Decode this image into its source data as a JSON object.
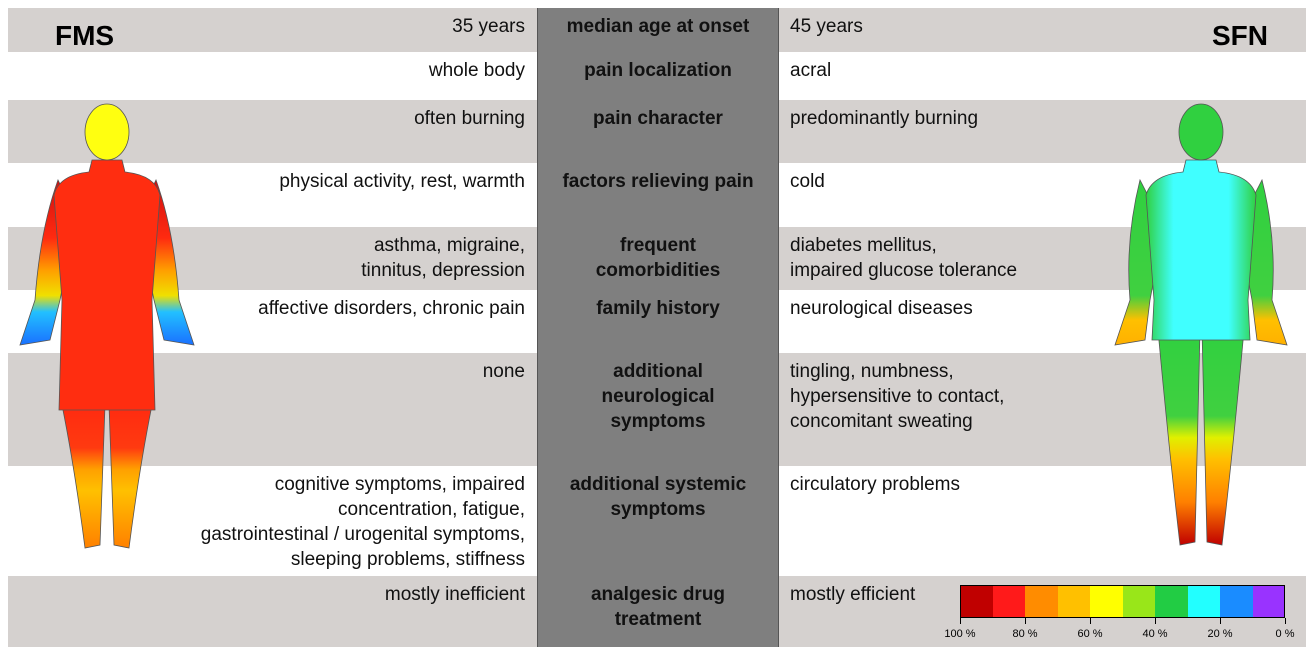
{
  "left_label": "FMS",
  "right_label": "SFN",
  "rows": [
    {
      "feature": "median age at onset",
      "fms": "35 years",
      "sfn": "45 years"
    },
    {
      "feature": "pain localization",
      "fms": "whole body",
      "sfn": "acral"
    },
    {
      "feature": "pain character",
      "fms": "often burning",
      "sfn": "predominantly burning"
    },
    {
      "feature": "factors relieving pain",
      "fms": "physical activity, rest, warmth",
      "sfn": "cold"
    },
    {
      "feature": "frequent\ncomorbidities",
      "fms": "asthma, migraine,\ntinnitus, depression",
      "sfn": "diabetes mellitus,\nimpaired glucose tolerance"
    },
    {
      "feature": "family history",
      "fms": "affective disorders, chronic pain",
      "sfn": "neurological diseases"
    },
    {
      "feature": "additional\nneurological\nsymptoms",
      "fms": "none",
      "sfn": "tingling, numbness,\nhypersensitive to contact,\nconcomitant sweating"
    },
    {
      "feature": "additional systemic\nsymptoms",
      "fms": "cognitive symptoms, impaired\nconcentration, fatigue,\ngastrointestinal / urogenital symptoms,\nsleeping problems, stiffness",
      "sfn": "circulatory problems"
    },
    {
      "feature": "analgesic drug\ntreatment",
      "fms": "mostly inefficient",
      "sfn": "mostly efficient"
    }
  ],
  "legend": {
    "colors": [
      "#c00000",
      "#ff1a1a",
      "#ff8c00",
      "#ffc000",
      "#ffff00",
      "#99e619",
      "#22cc44",
      "#22ffff",
      "#1a8cff",
      "#9933ff"
    ],
    "labels": [
      "100 %",
      "80 %",
      "60 %",
      "40 %",
      "20 %",
      "0 %"
    ]
  }
}
